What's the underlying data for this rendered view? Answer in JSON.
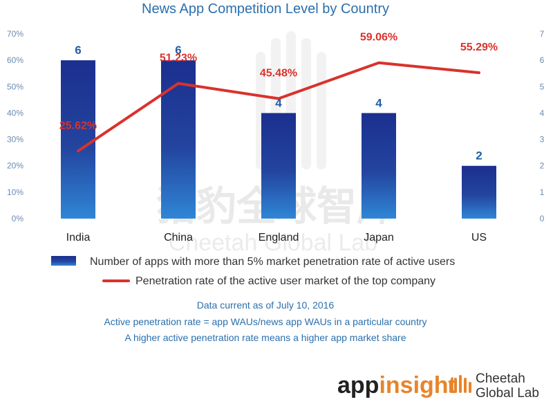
{
  "chart_data": {
    "type": "bar+line",
    "title": "News App Competition Level by Country",
    "categories": [
      "India",
      "China",
      "England",
      "Japan",
      "US"
    ],
    "series": [
      {
        "name": "Number of apps with more than 5% market penetration rate of active users",
        "type": "bar",
        "axis": "right",
        "values": [
          6,
          6,
          4,
          4,
          2
        ],
        "labels": [
          "6",
          "6",
          "4",
          "4",
          "2"
        ],
        "color": "#1d3a9e"
      },
      {
        "name": "Penetration rate of the active user market of the top company",
        "type": "line",
        "axis": "left",
        "values": [
          25.62,
          51.23,
          45.48,
          59.06,
          55.29
        ],
        "labels": [
          "25.62%",
          "51.23%",
          "45.48%",
          "59.06%",
          "55.29%"
        ],
        "color": "#d9322c"
      }
    ],
    "y_left": {
      "min": 0,
      "max": 70,
      "ticks": [
        "0%",
        "10%",
        "20%",
        "30%",
        "40%",
        "50%",
        "60%",
        "70%"
      ]
    },
    "y_right": {
      "min": 0,
      "max": 7,
      "ticks": [
        "0",
        "1",
        "2",
        "3",
        "4",
        "5",
        "6",
        "7"
      ]
    },
    "legend_position": "bottom",
    "grid": false
  },
  "notes": [
    "Data current as of July 10, 2016",
    "Active penetration rate = app WAUs/news app WAUs in a particular country",
    "A higher active penetration rate means a higher app market share"
  ],
  "watermark": {
    "cn": "猎豹全球智库",
    "en": "Cheetah Global Lab"
  },
  "logos": {
    "app": "app",
    "insight": "insight",
    "brand_line1": "Cheetah",
    "brand_line2": "Global Lab"
  },
  "colors": {
    "bar_top": "#1b2f8f",
    "bar_bottom": "#2f86d6",
    "line": "#d9322c",
    "title": "#2a6fad",
    "accent_orange": "#e8842a"
  }
}
